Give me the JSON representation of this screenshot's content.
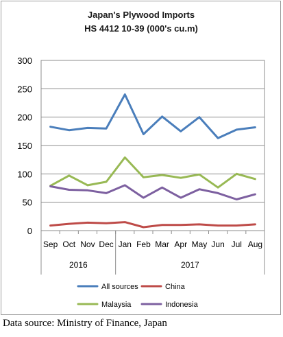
{
  "chart_data": {
    "type": "line",
    "title_lines": [
      "Japan's Plywood Imports",
      "HS 4412 10-39  (000's cu.m)"
    ],
    "categories": [
      "Sep",
      "Oct",
      "Nov",
      "Dec",
      "Jan",
      "Feb",
      "Mar",
      "Apr",
      "May",
      "Jun",
      "Jul",
      "Aug"
    ],
    "category_tick_labels": [
      "Sep",
      "Oct",
      "Nov",
      "Dec",
      "Jan",
      "Feb",
      "Mar",
      "Apr",
      "May",
      "Jun",
      "Jul",
      "Aug"
    ],
    "year_groups": [
      {
        "label": "2016",
        "from": 0,
        "to": 3
      },
      {
        "label": "2017",
        "from": 4,
        "to": 11
      }
    ],
    "ylim": [
      0,
      300
    ],
    "yticks": [
      0,
      50,
      100,
      150,
      200,
      250,
      300
    ],
    "grid": true,
    "legend_position": "bottom",
    "series": [
      {
        "name": "All sources",
        "color": "#4a7ebb",
        "values": [
          183,
          177,
          181,
          180,
          240,
          170,
          201,
          175,
          200,
          163,
          178,
          182
        ]
      },
      {
        "name": "China",
        "color": "#be4b48",
        "values": [
          9,
          12,
          14,
          13,
          15,
          6,
          10,
          10,
          11,
          9,
          9,
          11
        ]
      },
      {
        "name": "Malaysia",
        "color": "#98b954",
        "values": [
          79,
          97,
          80,
          86,
          129,
          94,
          98,
          93,
          99,
          76,
          100,
          91
        ]
      },
      {
        "name": "Indonesia",
        "color": "#7d60a0",
        "values": [
          78,
          72,
          71,
          66,
          80,
          58,
          76,
          58,
          73,
          66,
          55,
          64
        ]
      }
    ]
  },
  "footer": {
    "source": "Data source: Ministry of Finance, Japan"
  }
}
